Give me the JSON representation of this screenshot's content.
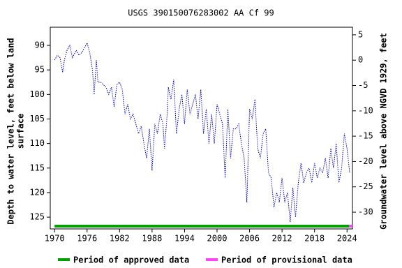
{
  "chart_data": {
    "type": "line",
    "title": "USGS 390150076283002 AA Cf  99",
    "ylabel": [
      "Depth to water level, feet below land",
      "surface"
    ],
    "y2label": "Groundwater level above NGVD 1929, feet",
    "xlim": [
      1969.2,
      2025.0
    ],
    "xticks": [
      1970,
      1976,
      1982,
      1988,
      1994,
      2000,
      2006,
      2012,
      2018,
      2024
    ],
    "ylim": [
      127.4,
      86.3
    ],
    "yticks": [
      90,
      95,
      100,
      105,
      110,
      115,
      120,
      125
    ],
    "y2lim": [
      -33.3,
      6.5
    ],
    "y2ticks": [
      5,
      0,
      -5,
      -10,
      -15,
      -20,
      -25,
      -30
    ],
    "series": [
      {
        "color": "#0000cc",
        "x": [
          1970.0,
          1970.5,
          1971,
          1971.5,
          1971.8,
          1972.3,
          1972.8,
          1973.3,
          1974,
          1974.5,
          1975,
          1975.5,
          1976,
          1976.5,
          1977,
          1977.3,
          1977.7,
          1978,
          1978.5,
          1979,
          1979.5,
          1980,
          1980.5,
          1981,
          1981.5,
          1982,
          1982.5,
          1983,
          1983.5,
          1984,
          1984.5,
          1985,
          1985.5,
          1986,
          1986.5,
          1987,
          1987.5,
          1988,
          1988.5,
          1989,
          1989.5,
          1990,
          1990.3,
          1990.8,
          1991,
          1991.5,
          1992,
          1992.5,
          1993,
          1993.5,
          1994,
          1994.5,
          1995,
          1995.5,
          1996,
          1996.5,
          1997,
          1997.5,
          1998,
          1998.5,
          1999,
          1999.5,
          2000,
          2000.5,
          2001,
          2001.5,
          2002,
          2002.5,
          2003,
          2003.5,
          2004,
          2004.5,
          2005,
          2005.5,
          2006,
          2006.5,
          2007,
          2007.5,
          2008,
          2008.5,
          2009,
          2009.5,
          2010,
          2010.5,
          2011,
          2011.5,
          2012,
          2012.5,
          2013,
          2013.5,
          2014,
          2014.5,
          2015,
          2015.5,
          2016,
          2016.5,
          2017,
          2017.5,
          2018,
          2018.5,
          2019,
          2019.5,
          2020,
          2020.5,
          2021,
          2021.5,
          2022,
          2022.5,
          2023,
          2023.5,
          2024,
          2024.5
        ],
        "values": [
          93,
          92,
          92.5,
          95.5,
          93,
          91,
          90,
          92.5,
          91,
          92,
          91.5,
          90.5,
          89.5,
          91.5,
          95,
          100,
          93,
          97.5,
          97.5,
          98,
          98.5,
          100,
          98.5,
          102.5,
          98,
          97.5,
          99,
          104,
          102,
          105,
          104,
          106,
          108,
          106.5,
          110,
          113,
          107,
          115.5,
          106,
          108,
          104,
          106,
          111,
          104,
          98.5,
          101,
          97,
          108,
          103,
          100,
          106,
          99,
          104,
          102,
          100,
          105,
          99,
          108,
          103,
          110,
          104,
          110,
          102,
          104,
          106,
          117,
          103,
          113,
          107,
          107,
          106,
          110,
          113,
          122,
          103,
          105,
          101,
          111,
          113,
          108,
          107,
          116,
          117,
          123,
          120,
          122,
          117,
          122,
          120,
          126,
          119,
          125,
          118,
          114,
          118,
          116,
          115,
          118,
          114,
          117,
          115,
          116,
          113,
          117,
          111,
          115,
          110,
          118,
          115,
          108,
          111,
          116
        ]
      }
    ],
    "periods": [
      {
        "name": "Period of approved data",
        "color": "#00a000",
        "start": 1970,
        "end": 2024.4
      },
      {
        "name": "Period of provisional data",
        "color": "#ff44ff",
        "start": 2024.4,
        "end": 2025.0
      }
    ]
  }
}
